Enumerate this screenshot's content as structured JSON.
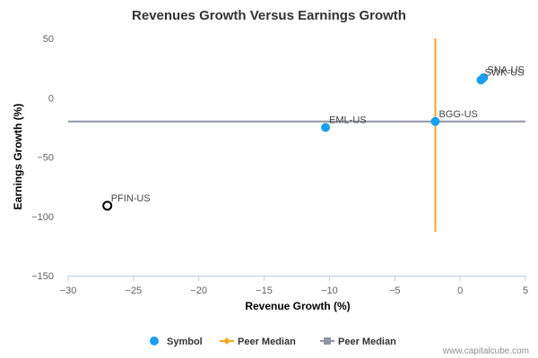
{
  "chart_data": {
    "type": "scatter",
    "title": "Revenues Growth Versus Earnings Growth",
    "xlabel": "Revenue Growth (%)",
    "ylabel": "Earnings Growth (%)",
    "xlim": [
      -30,
      5
    ],
    "ylim": [
      -150,
      50
    ],
    "x_ticks": [
      -30,
      -25,
      -20,
      -15,
      -10,
      -5,
      0,
      5
    ],
    "y_ticks": [
      50,
      0,
      -50,
      -100,
      -150
    ],
    "points": [
      {
        "label": "SNA-US",
        "x": 1.8,
        "y": 17,
        "style": "filled"
      },
      {
        "label": "SWK-US",
        "x": 1.6,
        "y": 15,
        "style": "filled"
      },
      {
        "label": "BGG-US",
        "x": -1.9,
        "y": -20,
        "style": "filled"
      },
      {
        "label": "EML-US",
        "x": -10.3,
        "y": -25,
        "style": "filled"
      },
      {
        "label": "PFIN-US",
        "x": -27,
        "y": -91,
        "style": "hollow"
      }
    ],
    "peer_median_x": -1.9,
    "peer_median_y": -20,
    "legend": [
      {
        "label": "Symbol",
        "marker": "circle",
        "color": "#1a9ff0"
      },
      {
        "label": "Peer Median",
        "marker": "diamond-line",
        "color": "#f5a623"
      },
      {
        "label": "Peer Median",
        "marker": "square-line",
        "color": "#8e95a3"
      }
    ],
    "legend_position": "bottom",
    "grid": false,
    "colors": {
      "symbol": "#1a9ff0",
      "highlight": "#000000",
      "vertical_median": "#f5a623",
      "horizontal_median": "#8e95a3"
    }
  },
  "credit": "www.capitalcube.com"
}
